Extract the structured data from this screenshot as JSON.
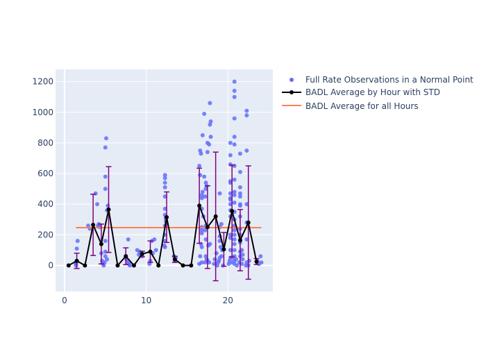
{
  "chart_data": {
    "type": "scatter",
    "title": "",
    "xlabel": "",
    "ylabel": "",
    "xlim": [
      -1.1,
      25.5
    ],
    "ylim": [
      -170,
      1280
    ],
    "xticks": [
      0,
      10,
      20
    ],
    "yticks": [
      0,
      200,
      400,
      600,
      800,
      1000,
      1200
    ],
    "grid": true,
    "legend_position": "top-right, outside plot",
    "colors": {
      "plot_bg": "#e5ecf6",
      "grid": "#ffffff",
      "scatter": "#636efa",
      "average": "#000000",
      "error_bar": "#800080",
      "overall": "#ff7f50"
    },
    "legend": [
      {
        "name": "Full Rate Observations in a Normal Point",
        "kind": "marker"
      },
      {
        "name": "BADL Average by Hour with STD",
        "kind": "line-marker"
      },
      {
        "name": "BADL Average for all Hours",
        "kind": "line"
      }
    ],
    "series": [
      {
        "name": "Full Rate Observations in a Normal Point",
        "points": [
          [
            1.4,
            0
          ],
          [
            1.4,
            20
          ],
          [
            1.5,
            30
          ],
          [
            1.5,
            110
          ],
          [
            1.6,
            160
          ],
          [
            1.4,
            10
          ],
          [
            2.9,
            260
          ],
          [
            3.1,
            240
          ],
          [
            3.8,
            470
          ],
          [
            4.0,
            400
          ],
          [
            4.1,
            260
          ],
          [
            4.2,
            270
          ],
          [
            4.3,
            250
          ],
          [
            4.5,
            80
          ],
          [
            4.6,
            30
          ],
          [
            4.7,
            10
          ],
          [
            4.8,
            0
          ],
          [
            4.9,
            20
          ],
          [
            5.0,
            60
          ],
          [
            5.0,
            90
          ],
          [
            5.0,
            160
          ],
          [
            5.0,
            500
          ],
          [
            5.0,
            580
          ],
          [
            5.0,
            770
          ],
          [
            5.1,
            830
          ],
          [
            5.2,
            360
          ],
          [
            5.2,
            40
          ],
          [
            5.3,
            390
          ],
          [
            7.5,
            60
          ],
          [
            7.6,
            40
          ],
          [
            7.7,
            20
          ],
          [
            7.8,
            170
          ],
          [
            7.9,
            10
          ],
          [
            8.0,
            0
          ],
          [
            8.9,
            100
          ],
          [
            9.1,
            70
          ],
          [
            9.2,
            90
          ],
          [
            9.3,
            80
          ],
          [
            9.5,
            60
          ],
          [
            10.4,
            10
          ],
          [
            10.5,
            30
          ],
          [
            10.7,
            160
          ],
          [
            10.8,
            80
          ],
          [
            11.0,
            170
          ],
          [
            11.2,
            100
          ],
          [
            12.2,
            130
          ],
          [
            12.3,
            120
          ],
          [
            12.3,
            160
          ],
          [
            12.3,
            200
          ],
          [
            12.3,
            260
          ],
          [
            12.3,
            330
          ],
          [
            12.3,
            370
          ],
          [
            12.3,
            450
          ],
          [
            12.3,
            510
          ],
          [
            12.3,
            540
          ],
          [
            12.3,
            570
          ],
          [
            12.3,
            590
          ],
          [
            12.4,
            310
          ],
          [
            12.4,
            290
          ],
          [
            13.4,
            60
          ],
          [
            13.5,
            30
          ],
          [
            13.6,
            50
          ],
          [
            16.5,
            10
          ],
          [
            16.6,
            60
          ],
          [
            16.7,
            140
          ],
          [
            16.8,
            210
          ],
          [
            16.8,
            230
          ],
          [
            16.8,
            250
          ],
          [
            16.8,
            370
          ],
          [
            16.8,
            440
          ],
          [
            16.8,
            460
          ],
          [
            16.9,
            480
          ],
          [
            16.6,
            590
          ],
          [
            16.5,
            650
          ],
          [
            16.7,
            730
          ],
          [
            16.6,
            750
          ],
          [
            16.9,
            850
          ],
          [
            16.8,
            20
          ],
          [
            16.8,
            120
          ],
          [
            17.1,
            580
          ],
          [
            17.1,
            990
          ],
          [
            17.2,
            450
          ],
          [
            17.3,
            500
          ],
          [
            17.3,
            540
          ],
          [
            17.4,
            520
          ],
          [
            17.5,
            740
          ],
          [
            17.5,
            800
          ],
          [
            17.7,
            790
          ],
          [
            17.8,
            1060
          ],
          [
            17.8,
            920
          ],
          [
            17.9,
            940
          ],
          [
            17.9,
            840
          ],
          [
            17.2,
            20
          ],
          [
            17.3,
            60
          ],
          [
            17.4,
            40
          ],
          [
            17.5,
            30
          ],
          [
            17.6,
            130
          ],
          [
            17.7,
            20
          ],
          [
            17.8,
            140
          ],
          [
            17.3,
            170
          ],
          [
            17.2,
            230
          ],
          [
            17.3,
            260
          ],
          [
            17.0,
            320
          ],
          [
            18.3,
            10
          ],
          [
            18.4,
            40
          ],
          [
            18.6,
            80
          ],
          [
            18.8,
            20
          ],
          [
            19.0,
            50
          ],
          [
            19.0,
            160
          ],
          [
            19.0,
            190
          ],
          [
            19.0,
            250
          ],
          [
            19.0,
            470
          ],
          [
            19.1,
            120
          ],
          [
            19.2,
            60
          ],
          [
            19.3,
            100
          ],
          [
            18.7,
            0
          ],
          [
            18.9,
            30
          ],
          [
            19.2,
            270
          ],
          [
            19.4,
            0
          ],
          [
            20.1,
            10
          ],
          [
            20.2,
            30
          ],
          [
            20.3,
            50
          ],
          [
            20.3,
            100
          ],
          [
            20.3,
            180
          ],
          [
            20.3,
            200
          ],
          [
            20.3,
            320
          ],
          [
            20.3,
            360
          ],
          [
            20.3,
            400
          ],
          [
            20.3,
            430
          ],
          [
            20.3,
            440
          ],
          [
            20.3,
            470
          ],
          [
            20.3,
            540
          ],
          [
            20.3,
            550
          ],
          [
            20.3,
            660
          ],
          [
            20.3,
            720
          ],
          [
            20.3,
            800
          ],
          [
            20.5,
            50
          ],
          [
            20.5,
            20
          ],
          [
            20.8,
            10
          ],
          [
            20.8,
            30
          ],
          [
            20.8,
            60
          ],
          [
            20.8,
            100
          ],
          [
            20.8,
            140
          ],
          [
            20.8,
            170
          ],
          [
            20.8,
            200
          ],
          [
            20.8,
            230
          ],
          [
            20.8,
            260
          ],
          [
            20.8,
            300
          ],
          [
            20.8,
            350
          ],
          [
            20.8,
            410
          ],
          [
            20.8,
            460
          ],
          [
            20.8,
            480
          ],
          [
            20.8,
            560
          ],
          [
            20.8,
            650
          ],
          [
            20.8,
            790
          ],
          [
            20.8,
            840
          ],
          [
            20.8,
            960
          ],
          [
            20.8,
            1100
          ],
          [
            20.8,
            1140
          ],
          [
            20.8,
            1200
          ],
          [
            21.0,
            40
          ],
          [
            21.1,
            0
          ],
          [
            21.4,
            20
          ],
          [
            21.5,
            60
          ],
          [
            21.5,
            90
          ],
          [
            21.5,
            150
          ],
          [
            21.5,
            200
          ],
          [
            21.5,
            240
          ],
          [
            21.5,
            320
          ],
          [
            21.5,
            390
          ],
          [
            21.5,
            400
          ],
          [
            21.5,
            450
          ],
          [
            21.5,
            470
          ],
          [
            21.5,
            510
          ],
          [
            21.5,
            610
          ],
          [
            21.5,
            730
          ],
          [
            21.7,
            100
          ],
          [
            21.7,
            10
          ],
          [
            21.8,
            40
          ],
          [
            21.8,
            70
          ],
          [
            22.2,
            0
          ],
          [
            22.3,
            20
          ],
          [
            22.3,
            170
          ],
          [
            22.3,
            280
          ],
          [
            22.3,
            400
          ],
          [
            22.3,
            750
          ],
          [
            22.3,
            980
          ],
          [
            22.3,
            1010
          ],
          [
            22.5,
            0
          ],
          [
            22.6,
            30
          ],
          [
            23.6,
            30
          ],
          [
            23.8,
            10
          ],
          [
            24.0,
            60
          ],
          [
            24.1,
            20
          ]
        ]
      },
      {
        "name": "BADL Average by Hour with STD",
        "points": [
          [
            0.5,
            0,
            0
          ],
          [
            1.5,
            30,
            50
          ],
          [
            2.5,
            0,
            0
          ],
          [
            3.5,
            265,
            200
          ],
          [
            4.5,
            140,
            130
          ],
          [
            5.4,
            365,
            280
          ],
          [
            6.5,
            0,
            0
          ],
          [
            7.5,
            60,
            55
          ],
          [
            8.5,
            0,
            0
          ],
          [
            9.5,
            75,
            18
          ],
          [
            10.5,
            90,
            70
          ],
          [
            11.5,
            0,
            0
          ],
          [
            12.5,
            315,
            165
          ],
          [
            13.5,
            40,
            20
          ],
          [
            14.5,
            0,
            0
          ],
          [
            15.5,
            0,
            0
          ],
          [
            16.5,
            390,
            245
          ],
          [
            17.5,
            250,
            270
          ],
          [
            18.5,
            320,
            420
          ],
          [
            19.5,
            105,
            110
          ],
          [
            20.5,
            355,
            300
          ],
          [
            21.5,
            165,
            200
          ],
          [
            22.5,
            280,
            370
          ],
          [
            23.5,
            25,
            20
          ]
        ]
      },
      {
        "name": "BADL Average for all Hours",
        "x": [
          1.4,
          24.1
        ],
        "value": 247
      }
    ]
  }
}
